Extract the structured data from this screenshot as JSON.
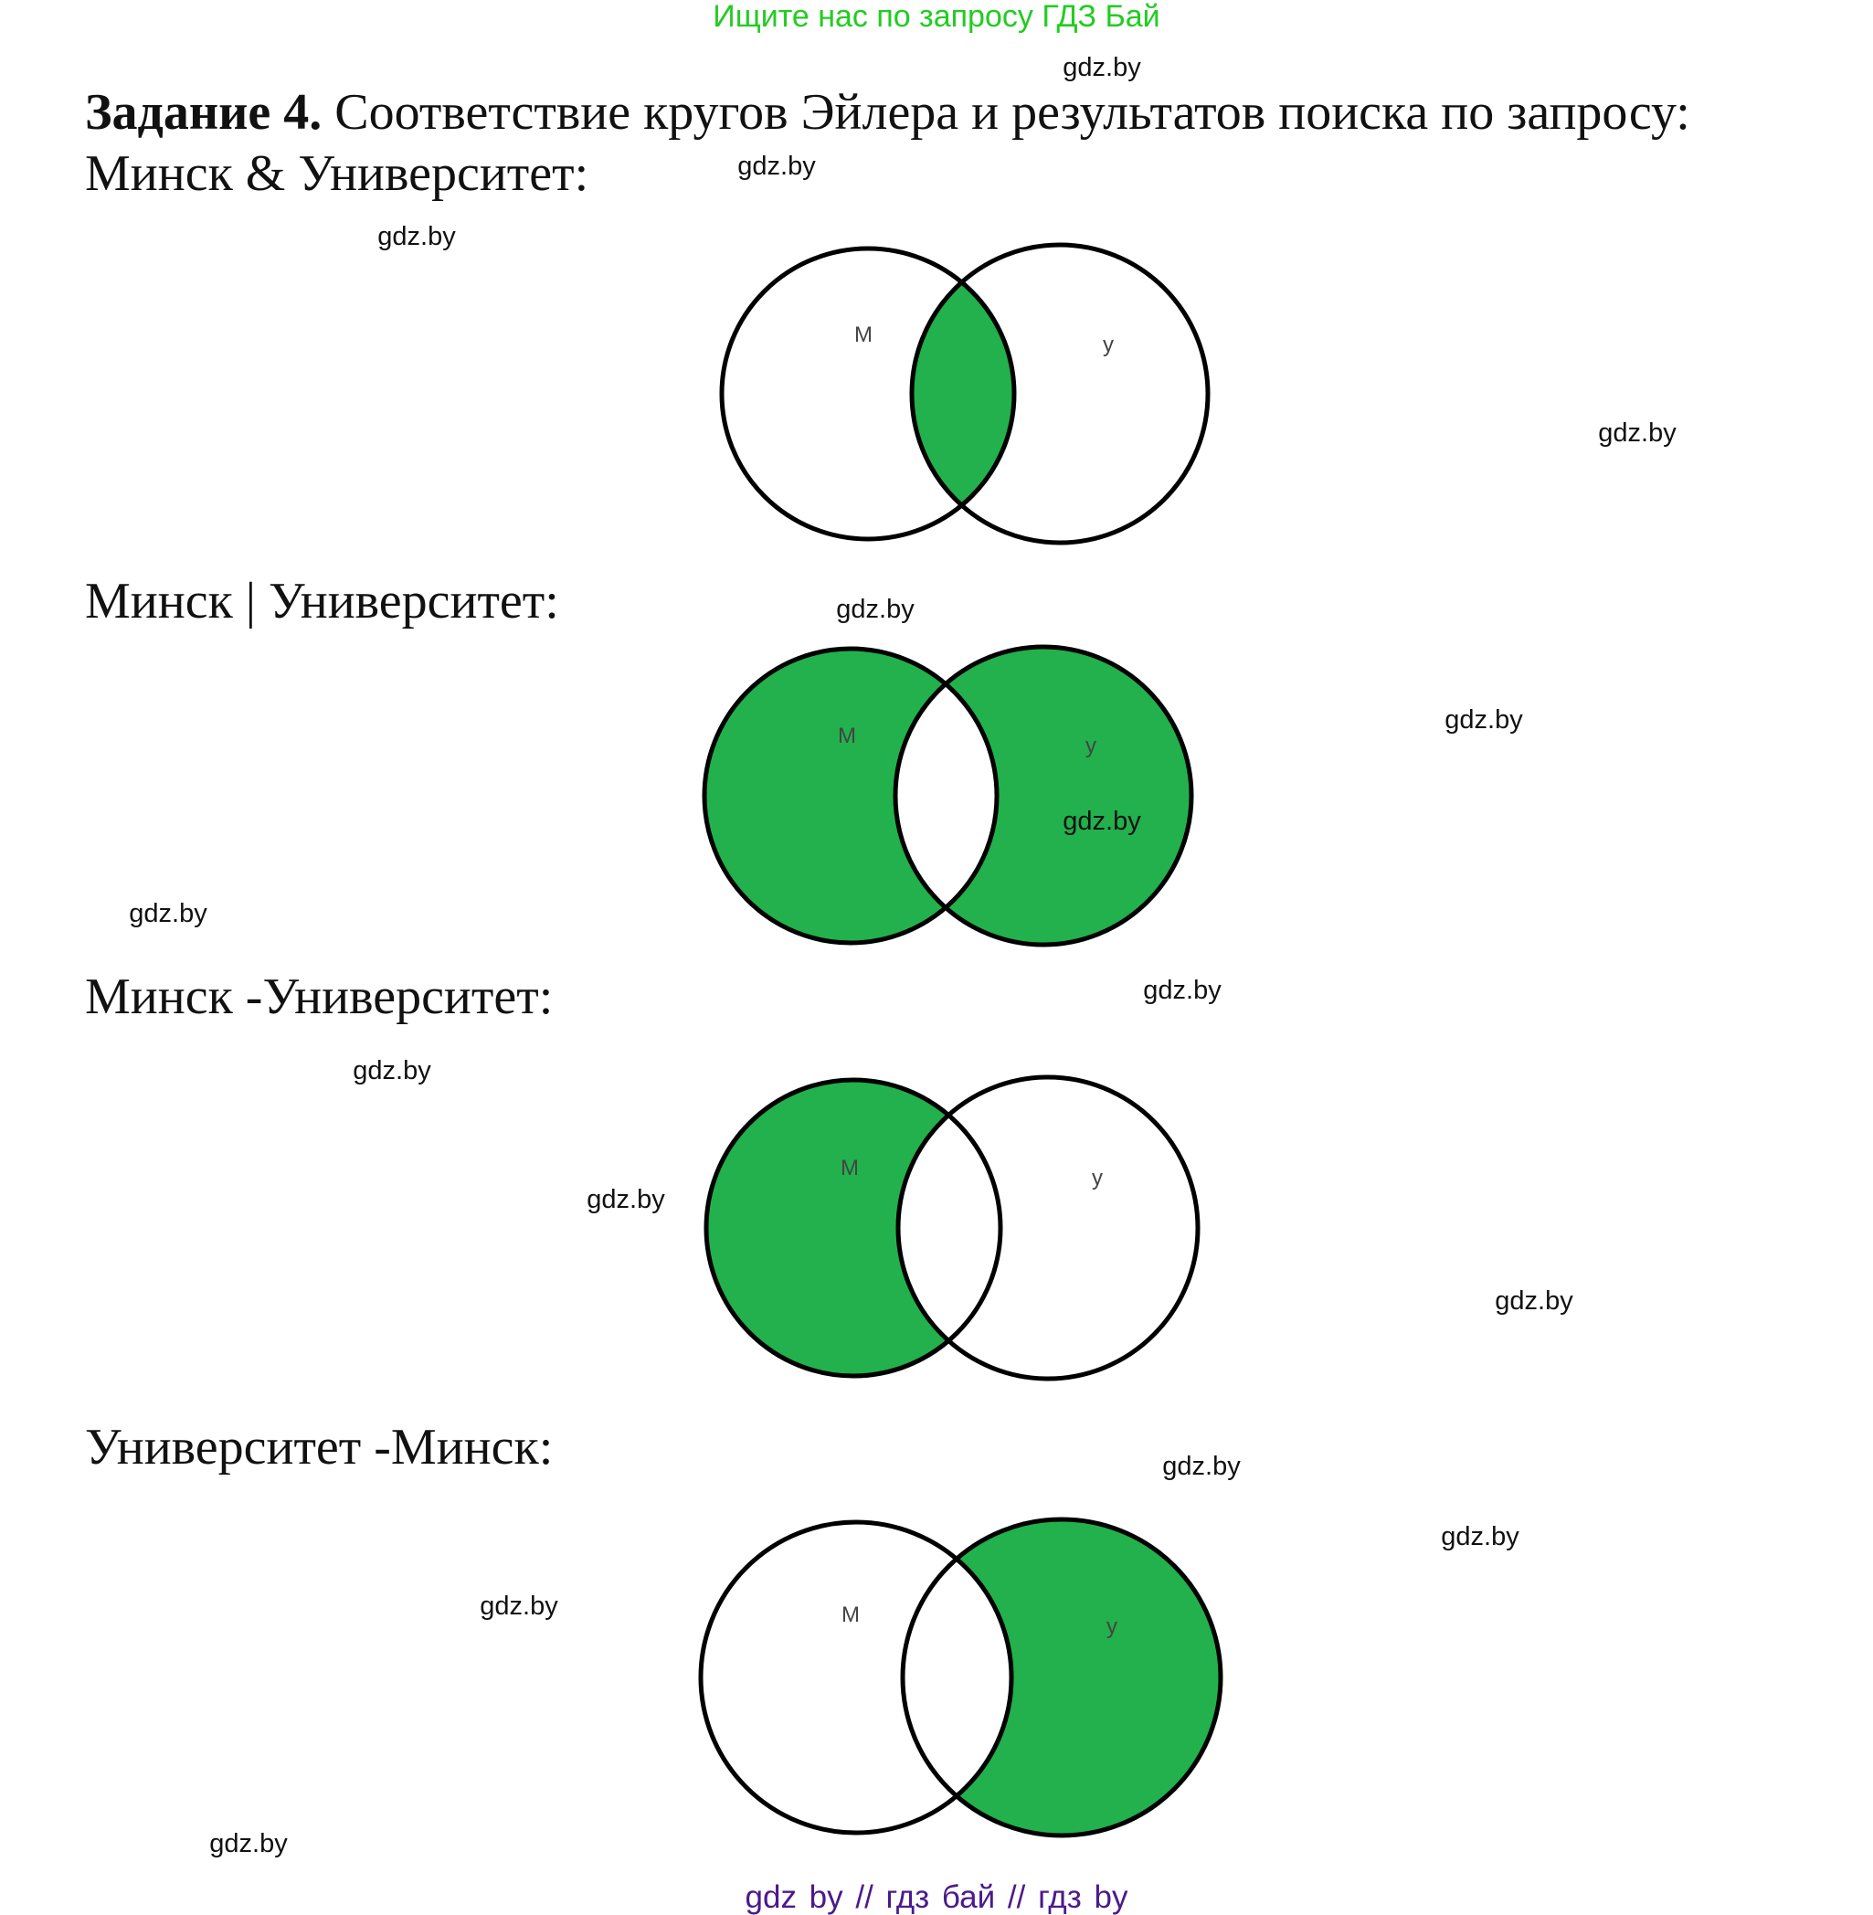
{
  "banner": "Ищите нас по запросу ГДЗ Бай",
  "title": {
    "bold": "Задание 4.",
    "text": " Соответствие кругов Эйлера и результатов поиска по запросу:"
  },
  "queries": [
    {
      "label": "Минск & Университет:",
      "left_label": "М",
      "right_label": "у",
      "shaded": [
        "intersection"
      ]
    },
    {
      "label": "Минск | Университет:",
      "left_label": "М",
      "right_label": "у",
      "shaded": [
        "left_only",
        "right_only"
      ]
    },
    {
      "label": "Минск -Университет:",
      "left_label": "М",
      "right_label": "у",
      "shaded": [
        "left_only"
      ]
    },
    {
      "label": "Университет -Минск:",
      "left_label": "М",
      "right_label": "у",
      "shaded": [
        "right_only"
      ]
    }
  ],
  "colors": {
    "fill": "#22b14c",
    "stroke": "#000000",
    "banner": "#22cc22",
    "footer": "#4b1a8c"
  },
  "watermarks": [
    "gdz.by",
    "gdz.by",
    "gdz.by",
    "gdz.by",
    "gdz.by",
    "gdz.by",
    "gdz.by",
    "gdz.by",
    "gdz.by",
    "gdz.by",
    "gdz.by",
    "gdz.by",
    "gdz.by",
    "gdz.by",
    "gdz.by",
    "gdz.by",
    "gdz.by"
  ],
  "footer": "gdz by  //  гдз бай  //  гдз by"
}
